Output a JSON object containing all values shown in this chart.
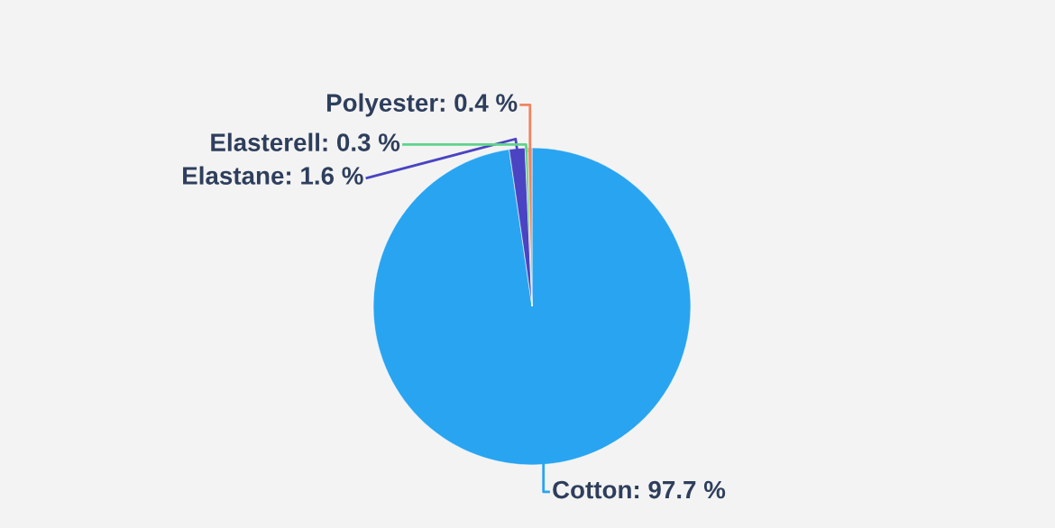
{
  "chart_data": {
    "type": "pie",
    "categories": [
      "Cotton",
      "Elastane",
      "Elasterell",
      "Polyester"
    ],
    "values": [
      97.7,
      1.6,
      0.3,
      0.4
    ],
    "colors": [
      "#29a4f0",
      "#4a44c2",
      "#5ed38b",
      "#f08462"
    ],
    "value_labels": [
      "97.7 %",
      "1.6 %",
      "0.3 %",
      "0.4 %"
    ]
  }
}
